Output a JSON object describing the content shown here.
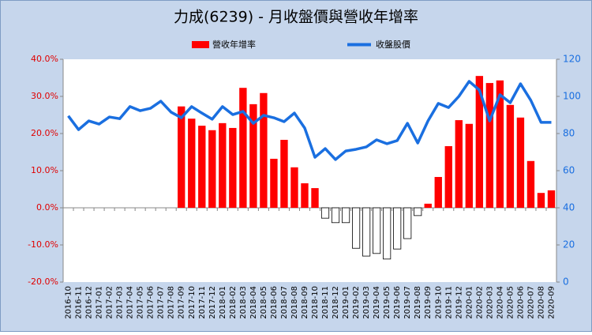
{
  "chart_data": {
    "type": "bar_line",
    "title": "力成(6239)  - 月收盤價與營收年增率",
    "categories": [
      "2016-10",
      "2016-11",
      "2016-12",
      "2017-01",
      "2017-02",
      "2017-03",
      "2017-04",
      "2017-05",
      "2017-06",
      "2017-07",
      "2017-08",
      "2017-09",
      "2017-10",
      "2017-11",
      "2017-12",
      "2018-01",
      "2018-02",
      "2018-03",
      "2018-04",
      "2018-05",
      "2018-06",
      "2018-07",
      "2018-08",
      "2018-09",
      "2018-10",
      "2018-11",
      "2018-12",
      "2019-01",
      "2019-02",
      "2019-03",
      "2019-04",
      "2019-05",
      "2019-06",
      "2019-07",
      "2019-08",
      "2019-09",
      "2019-10",
      "2019-11",
      "2019-12",
      "2020-01",
      "2020-02",
      "2020-03",
      "2020-04",
      "2020-05",
      "2020-06",
      "2020-07",
      "2020-08",
      "2020-09"
    ],
    "series": [
      {
        "name": "營收年增率",
        "type": "bar",
        "color": "#ff0000",
        "negative_color": "#ffffff",
        "values": [
          null,
          null,
          null,
          null,
          null,
          null,
          null,
          null,
          null,
          null,
          null,
          27.3,
          24.0,
          22.1,
          20.9,
          22.8,
          21.5,
          32.3,
          27.9,
          30.9,
          13.2,
          18.3,
          10.9,
          6.6,
          5.3,
          -2.8,
          -4.0,
          -4.0,
          -10.9,
          -13.0,
          -12.3,
          -13.8,
          -11.1,
          -8.3,
          -2.1,
          1.1,
          8.3,
          16.6,
          23.6,
          22.6,
          35.5,
          33.6,
          34.3,
          27.7,
          24.3,
          12.6,
          4.0,
          4.7
        ]
      },
      {
        "name": "收盤股價",
        "type": "line",
        "axis": "y2",
        "color": "#1a6fe0",
        "values": [
          89.5,
          82.1,
          86.8,
          85.1,
          88.9,
          88.0,
          94.5,
          92.3,
          93.6,
          97.4,
          91.5,
          88.5,
          94.5,
          91.0,
          87.7,
          94.5,
          90.2,
          91.9,
          85.5,
          89.8,
          88.5,
          86.4,
          91.0,
          83.0,
          67.2,
          71.9,
          66.0,
          70.6,
          71.5,
          72.8,
          76.6,
          74.5,
          76.2,
          85.5,
          74.9,
          86.8,
          96.2,
          94.0,
          100.0,
          108.1,
          103.4,
          86.8,
          100.9,
          96.6,
          106.8,
          97.9,
          86.0,
          86.0
        ]
      }
    ],
    "ylim": [
      -20,
      40
    ],
    "yticks": [
      {
        "value": -20,
        "label": "-20.0%"
      },
      {
        "value": -10,
        "label": "-10.0%"
      },
      {
        "value": 0,
        "label": "0.0%"
      },
      {
        "value": 10,
        "label": "10.0%"
      },
      {
        "value": 20,
        "label": "20.0%"
      },
      {
        "value": 30,
        "label": "30.0%"
      },
      {
        "value": 40,
        "label": "40.0%"
      }
    ],
    "y2lim": [
      0,
      120
    ],
    "y2ticks": [
      0,
      20,
      40,
      60,
      80,
      100,
      120
    ],
    "ytick_color": "#e00000",
    "y2tick_color": "#1a6fe0",
    "legend": "top"
  }
}
